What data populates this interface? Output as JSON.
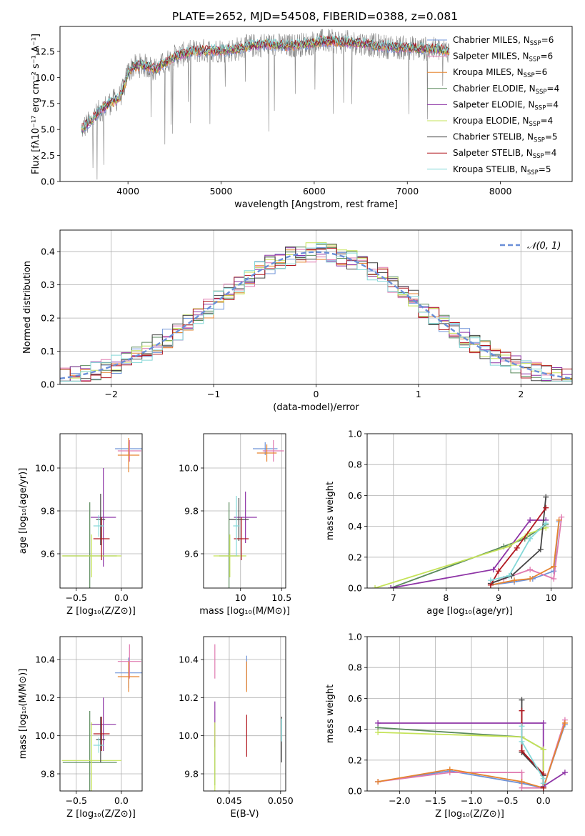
{
  "figure": {
    "title": "PLATE=2652, MJD=54508, FIBERID=0388, z=0.081"
  },
  "colors": {
    "Chabrier MILES": "#6f93d8",
    "Salpeter MILES": "#e07ab0",
    "Kroupa MILES": "#e6842f",
    "Chabrier ELODIE": "#5a8a5c",
    "Salpeter ELODIE": "#8e34a6",
    "Kroupa ELODIE": "#c5e358",
    "Chabrier STELIB": "#444444",
    "Salpeter STELIB": "#b1161e",
    "Kroupa STELIB": "#84d8d8",
    "spectrum": "#808080",
    "gaussian": "#6a8fd8"
  },
  "chart_data": [
    {
      "id": "spectrum",
      "type": "line",
      "title": "PLATE=2652, MJD=54508, FIBERID=0388, z=0.081",
      "xlabel": "wavelength [Angstrom, rest frame]",
      "ylabel": "Flux [fλ10⁻¹⁷ erg cm⁻² s⁻¹ A⁻¹]",
      "xlim": [
        3270,
        8770
      ],
      "ylim": [
        0,
        14.9
      ],
      "x_ticks": [
        4000,
        5000,
        6000,
        7000,
        8000
      ],
      "y_ticks": [
        0.0,
        2.5,
        5.0,
        7.5,
        10.0,
        12.5
      ],
      "legend_position": "top-right",
      "legend": [
        {
          "label": "Chabrier MILES, N_SSP=6",
          "text": "Chabrier MILES, N",
          "sub": "SSP",
          "val": "=6",
          "color_key": "Chabrier MILES"
        },
        {
          "label": "Salpeter MILES, N_SSP=6",
          "text": "Salpeter MILES, N",
          "sub": "SSP",
          "val": "=6",
          "color_key": "Salpeter MILES"
        },
        {
          "label": "Kroupa MILES, N_SSP=6",
          "text": "Kroupa MILES, N",
          "sub": "SSP",
          "val": "=6",
          "color_key": "Kroupa MILES"
        },
        {
          "label": "Chabrier ELODIE, N_SSP=4",
          "text": "Chabrier ELODIE, N",
          "sub": "SSP",
          "val": "=4",
          "color_key": "Chabrier ELODIE"
        },
        {
          "label": "Salpeter ELODIE, N_SSP=4",
          "text": "Salpeter ELODIE, N",
          "sub": "SSP",
          "val": "=4",
          "color_key": "Salpeter ELODIE"
        },
        {
          "label": "Kroupa ELODIE, N_SSP=4",
          "text": "Kroupa ELODIE, N",
          "sub": "SSP",
          "val": "=4",
          "color_key": "Kroupa ELODIE"
        },
        {
          "label": "Chabrier STELIB, N_SSP=5",
          "text": "Chabrier STELIB, N",
          "sub": "SSP",
          "val": "=5",
          "color_key": "Chabrier STELIB"
        },
        {
          "label": "Salpeter STELIB, N_SSP=4",
          "text": "Salpeter STELIB, N",
          "sub": "SSP",
          "val": "=4",
          "color_key": "Salpeter STELIB"
        },
        {
          "label": "Kroupa STELIB, N_SSP=5",
          "text": "Kroupa STELIB, N",
          "sub": "SSP",
          "val": "=5",
          "color_key": "Kroupa STELIB"
        }
      ],
      "continuum": {
        "x": [
          3500,
          3600,
          3700,
          3800,
          3900,
          3950,
          4000,
          4050,
          4150,
          4300,
          4500,
          4700,
          4900,
          5100,
          5300,
          5500,
          5700,
          5900,
          6100,
          6300,
          6500,
          6700,
          6900,
          7100,
          7300,
          7400
        ],
        "y": [
          5.0,
          5.8,
          6.8,
          7.5,
          8.0,
          8.8,
          10.5,
          11.0,
          11.2,
          10.8,
          12.0,
          12.5,
          12.6,
          12.6,
          13.0,
          13.2,
          13.0,
          13.2,
          13.5,
          13.4,
          13.3,
          13.0,
          12.9,
          12.8,
          12.7,
          12.6
        ]
      },
      "spectrum_xrange": [
        3500,
        7450
      ]
    },
    {
      "id": "residuals",
      "type": "step",
      "xlabel": "(data-model)/error",
      "ylabel": "Normed distribution",
      "xlim": [
        -2.5,
        2.5
      ],
      "ylim": [
        0,
        0.465
      ],
      "x_ticks": [
        -2,
        -1,
        0,
        1,
        2
      ],
      "x_tick_labels": [
        "−2",
        "−1",
        "0",
        "1",
        "2"
      ],
      "y_ticks": [
        0.0,
        0.1,
        0.2,
        0.3,
        0.4
      ],
      "grid": true,
      "legend_position": "top-right",
      "legend": [
        {
          "label": "𝒩(0, 1)",
          "style": "dashed",
          "color_key": "gaussian"
        }
      ],
      "gaussian": {
        "mean": 0,
        "sd": 1
      },
      "bin_width": 0.1,
      "bin_start": -2.5
    },
    {
      "id": "age_vs_Z",
      "type": "errorbar",
      "xlabel": "Z [log₁₀(Z/Z⊙)]",
      "ylabel": "age  [log₁₀(age/yr)]",
      "xlim": [
        -0.68,
        0.23
      ],
      "ylim": [
        9.44,
        10.16
      ],
      "x_ticks": [
        -0.5,
        0.0
      ],
      "x_tick_labels": [
        "−0.5",
        "0.0"
      ],
      "y_ticks": [
        9.6,
        9.8,
        10.0
      ],
      "grid": true,
      "points": [
        {
          "series": "Chabrier MILES",
          "x": 0.08,
          "y": 10.09,
          "xerr": 0.15,
          "yerr": 0.03
        },
        {
          "series": "Salpeter MILES",
          "x": 0.09,
          "y": 10.08,
          "xerr": 0.13,
          "yerr": 0.05
        },
        {
          "series": "Kroupa MILES",
          "x": 0.08,
          "y": 10.06,
          "xerr": 0.12,
          "yerr": 0.08
        },
        {
          "series": "Chabrier ELODIE",
          "x": -0.35,
          "y": 9.59,
          "xerr": 0.3,
          "yerr": 0.25
        },
        {
          "series": "Salpeter ELODIE",
          "x": -0.2,
          "y": 9.77,
          "xerr": 0.14,
          "yerr": 0.23
        },
        {
          "series": "Kroupa ELODIE",
          "x": -0.33,
          "y": 9.59,
          "xerr": 0.33,
          "yerr": 0.1
        },
        {
          "series": "Chabrier STELIB",
          "x": -0.23,
          "y": 9.76,
          "xerr": 0.05,
          "yerr": 0.12
        },
        {
          "series": "Salpeter STELIB",
          "x": -0.22,
          "y": 9.67,
          "xerr": 0.09,
          "yerr": 0.1
        },
        {
          "series": "Kroupa STELIB",
          "x": -0.25,
          "y": 9.73,
          "xerr": 0.06,
          "yerr": 0.05
        }
      ]
    },
    {
      "id": "age_vs_mass",
      "type": "errorbar",
      "xlabel": "mass [log₁₀(M/M⊙)]",
      "ylabel": "",
      "xlim": [
        9.55,
        10.55
      ],
      "ylim": [
        9.44,
        10.16
      ],
      "x_ticks": [
        9.5,
        10.0,
        10.5
      ],
      "y_ticks": [
        9.6,
        9.8,
        10.0
      ],
      "grid": true,
      "points": [
        {
          "series": "Chabrier MILES",
          "x": 10.3,
          "y": 10.09,
          "xerr": 0.15,
          "yerr": 0.03
        },
        {
          "series": "Salpeter MILES",
          "x": 10.4,
          "y": 10.08,
          "xerr": 0.13,
          "yerr": 0.05
        },
        {
          "series": "Kroupa MILES",
          "x": 10.32,
          "y": 10.07,
          "xerr": 0.12,
          "yerr": 0.04
        },
        {
          "series": "Chabrier ELODIE",
          "x": 9.86,
          "y": 9.59,
          "xerr": 0.12,
          "yerr": 0.25
        },
        {
          "series": "Salpeter ELODIE",
          "x": 10.06,
          "y": 9.77,
          "xerr": 0.14,
          "yerr": 0.12
        },
        {
          "series": "Kroupa ELODIE",
          "x": 9.87,
          "y": 9.59,
          "xerr": 0.2,
          "yerr": 0.1
        },
        {
          "series": "Chabrier STELIB",
          "x": 9.98,
          "y": 9.76,
          "xerr": 0.12,
          "yerr": 0.1
        },
        {
          "series": "Salpeter STELIB",
          "x": 10.01,
          "y": 9.67,
          "xerr": 0.09,
          "yerr": 0.1
        },
        {
          "series": "Kroupa STELIB",
          "x": 9.95,
          "y": 9.73,
          "xerr": 0.04,
          "yerr": 0.14
        }
      ]
    },
    {
      "id": "weight_vs_age",
      "type": "line",
      "xlabel": "age  [log₁₀(age/yr)]",
      "ylabel": "mass weight",
      "xlim": [
        6.5,
        10.4
      ],
      "ylim": [
        0,
        1.0
      ],
      "x_ticks": [
        7,
        8,
        9,
        10
      ],
      "y_ticks": [
        0.0,
        0.2,
        0.4,
        0.6,
        0.8,
        1.0
      ],
      "grid": true,
      "series": [
        {
          "name": "Chabrier MILES",
          "x": [
            8.85,
            9.3,
            9.65,
            10.05,
            10.15
          ],
          "y": [
            0.02,
            0.04,
            0.06,
            0.11,
            0.43
          ]
        },
        {
          "name": "Salpeter MILES",
          "x": [
            8.85,
            9.1,
            9.6,
            10.05,
            10.2
          ],
          "y": [
            0.03,
            0.06,
            0.12,
            0.06,
            0.46
          ]
        },
        {
          "name": "Kroupa MILES",
          "x": [
            8.85,
            9.3,
            9.6,
            10.05,
            10.15
          ],
          "y": [
            0.02,
            0.05,
            0.06,
            0.14,
            0.44
          ]
        },
        {
          "name": "Chabrier ELODIE",
          "x": [
            6.95,
            9.1,
            9.5,
            9.9
          ],
          "y": [
            0.0,
            0.27,
            0.32,
            0.41
          ]
        },
        {
          "name": "Salpeter ELODIE",
          "x": [
            6.95,
            8.9,
            9.6,
            9.9
          ],
          "y": [
            0.0,
            0.12,
            0.44,
            0.44
          ]
        },
        {
          "name": "Kroupa ELODIE",
          "x": [
            6.65,
            9.2,
            9.55,
            9.9
          ],
          "y": [
            0.0,
            0.27,
            0.35,
            0.39
          ]
        },
        {
          "name": "Chabrier STELIB",
          "x": [
            8.85,
            9.25,
            9.8,
            9.9
          ],
          "y": [
            0.03,
            0.08,
            0.25,
            0.59
          ]
        },
        {
          "name": "Salpeter STELIB",
          "x": [
            8.85,
            9.0,
            9.35,
            9.9
          ],
          "y": [
            0.02,
            0.11,
            0.26,
            0.52
          ]
        },
        {
          "name": "Kroupa STELIB",
          "x": [
            8.85,
            9.2,
            9.6,
            9.9
          ],
          "y": [
            0.05,
            0.08,
            0.32,
            0.42
          ]
        }
      ]
    },
    {
      "id": "mass_vs_Z",
      "type": "errorbar",
      "xlabel": "Z [log₁₀(Z/Z⊙)]",
      "ylabel": "mass [log₁₀(M/M⊙)]",
      "xlim": [
        -0.68,
        0.23
      ],
      "ylim": [
        9.71,
        10.52
      ],
      "x_ticks": [
        -0.5,
        0.0
      ],
      "x_tick_labels": [
        "−0.5",
        "0.0"
      ],
      "y_ticks": [
        9.8,
        10.0,
        10.2,
        10.4
      ],
      "grid": true,
      "points": [
        {
          "series": "Chabrier MILES",
          "x": 0.08,
          "y": 10.33,
          "xerr": 0.15,
          "yerr": 0.08
        },
        {
          "series": "Salpeter MILES",
          "x": 0.09,
          "y": 10.39,
          "xerr": 0.13,
          "yerr": 0.09
        },
        {
          "series": "Kroupa MILES",
          "x": 0.08,
          "y": 10.31,
          "xerr": 0.12,
          "yerr": 0.08
        },
        {
          "series": "Chabrier ELODIE",
          "x": -0.35,
          "y": 9.86,
          "xerr": 0.3,
          "yerr": 0.27
        },
        {
          "series": "Salpeter ELODIE",
          "x": -0.2,
          "y": 10.06,
          "xerr": 0.14,
          "yerr": 0.14
        },
        {
          "series": "Kroupa ELODIE",
          "x": -0.33,
          "y": 9.87,
          "xerr": 0.33,
          "yerr": 0.2
        },
        {
          "series": "Chabrier STELIB",
          "x": -0.23,
          "y": 9.98,
          "xerr": 0.05,
          "yerr": 0.12
        },
        {
          "series": "Salpeter STELIB",
          "x": -0.22,
          "y": 10.01,
          "xerr": 0.09,
          "yerr": 0.09
        },
        {
          "series": "Kroupa STELIB",
          "x": -0.25,
          "y": 9.95,
          "xerr": 0.06,
          "yerr": 0.04
        }
      ]
    },
    {
      "id": "mass_vs_ebv",
      "type": "errorbar",
      "xlabel": "E(B-V)",
      "ylabel": "",
      "xlim": [
        0.0425,
        0.0505
      ],
      "ylim": [
        9.71,
        10.52
      ],
      "x_ticks": [
        0.045,
        0.05
      ],
      "x_tick_labels": [
        "0.045",
        "0.050"
      ],
      "y_ticks": [
        9.8,
        10.0,
        10.2,
        10.4
      ],
      "grid": true,
      "points": [
        {
          "series": "Chabrier MILES",
          "x": 0.0467,
          "y": 10.33,
          "xerr": 0,
          "yerr": 0.09
        },
        {
          "series": "Salpeter MILES",
          "x": 0.0436,
          "y": 10.39,
          "xerr": 0,
          "yerr": 0.09
        },
        {
          "series": "Kroupa MILES",
          "x": 0.0467,
          "y": 10.31,
          "xerr": 0,
          "yerr": 0.08
        },
        {
          "series": "Chabrier ELODIE",
          "x": 0.0436,
          "y": 9.86,
          "xerr": 0,
          "yerr": 0.12
        },
        {
          "series": "Salpeter ELODIE",
          "x": 0.0436,
          "y": 10.06,
          "xerr": 0,
          "yerr": 0.12
        },
        {
          "series": "Kroupa ELODIE",
          "x": 0.0436,
          "y": 9.87,
          "xerr": 0,
          "yerr": 0.2
        },
        {
          "series": "Chabrier STELIB",
          "x": 0.0501,
          "y": 9.98,
          "xerr": 0,
          "yerr": 0.12
        },
        {
          "series": "Salpeter STELIB",
          "x": 0.0467,
          "y": 10.0,
          "xerr": 0,
          "yerr": 0.11
        },
        {
          "series": "Kroupa STELIB",
          "x": 0.0501,
          "y": 10.03,
          "xerr": 0,
          "yerr": 0.06
        }
      ]
    },
    {
      "id": "weight_vs_Z",
      "type": "line",
      "xlabel": "Z [log₁₀(Z/Z⊙)]",
      "ylabel": "mass weight",
      "xlim": [
        -2.45,
        0.4
      ],
      "ylim": [
        0,
        1.0
      ],
      "x_ticks": [
        -2.0,
        -1.5,
        -1.0,
        -0.5,
        0.0
      ],
      "x_tick_labels": [
        "−2.0",
        "−1.5",
        "−1.0",
        "−0.5",
        "0.0"
      ],
      "y_ticks": [
        0.0,
        0.2,
        0.4,
        0.6,
        0.8,
        1.0
      ],
      "grid": true,
      "series": [
        {
          "name": "Chabrier MILES",
          "x": [
            -2.3,
            -1.3,
            -0.3,
            0.0,
            0.3
          ],
          "y": [
            0.06,
            0.13,
            0.05,
            0.02,
            0.43
          ]
        },
        {
          "name": "Salpeter MILES",
          "x": [
            -2.3,
            -1.3,
            -0.3,
            -0.3,
            0.0,
            0.3
          ],
          "y": [
            0.06,
            0.12,
            0.12,
            0.02,
            0.02,
            0.46
          ]
        },
        {
          "name": "Kroupa MILES",
          "x": [
            -2.3,
            -1.3,
            -0.3,
            0.0,
            0.3
          ],
          "y": [
            0.06,
            0.14,
            0.06,
            0.02,
            0.44
          ]
        },
        {
          "name": "Chabrier ELODIE",
          "x": [
            -2.3,
            -0.3,
            0.0,
            0.0
          ],
          "y": [
            0.41,
            0.35,
            0.27,
            0.02
          ]
        },
        {
          "name": "Salpeter ELODIE",
          "x": [
            -2.3,
            0.0,
            0.0,
            0.3
          ],
          "y": [
            0.44,
            0.44,
            0.03,
            0.12
          ]
        },
        {
          "name": "Kroupa ELODIE",
          "x": [
            -2.3,
            -0.3,
            0.0,
            0.0
          ],
          "y": [
            0.38,
            0.35,
            0.27,
            0.02
          ]
        },
        {
          "name": "Chabrier STELIB",
          "x": [
            -0.3,
            -0.3,
            0.0,
            0.0
          ],
          "y": [
            0.59,
            0.25,
            0.1,
            0.02
          ]
        },
        {
          "name": "Salpeter STELIB",
          "x": [
            -0.3,
            -0.3,
            0.0,
            0.0
          ],
          "y": [
            0.52,
            0.26,
            0.11,
            0.02
          ]
        },
        {
          "name": "Kroupa STELIB",
          "x": [
            -0.3,
            -0.3,
            0.0,
            0.0
          ],
          "y": [
            0.42,
            0.32,
            0.08,
            0.05
          ]
        }
      ]
    }
  ]
}
